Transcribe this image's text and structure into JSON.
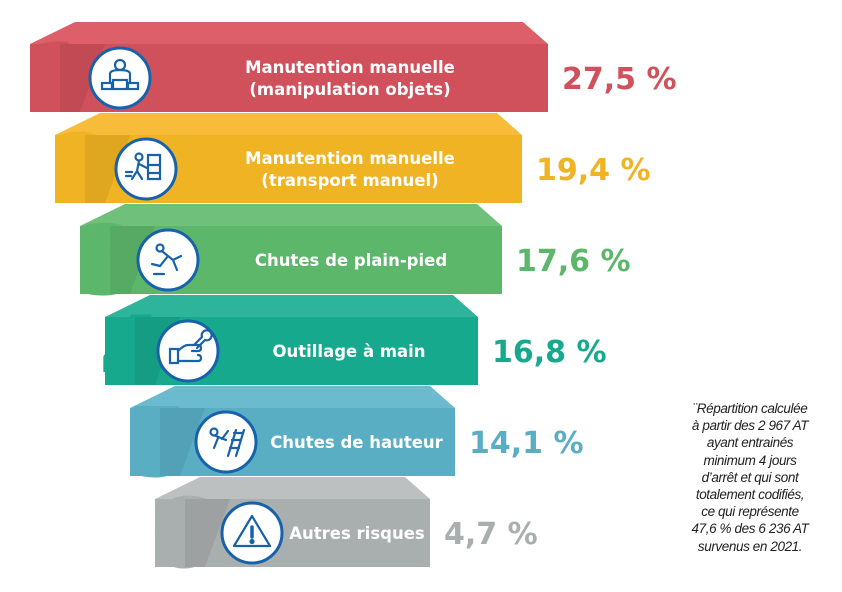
{
  "chart_data": {
    "type": "bar",
    "orientation": "horizontal-ranked",
    "unit": "%",
    "ranks": [
      "1",
      "2",
      "3",
      "4",
      "5",
      "6"
    ],
    "categories": [
      [
        "Manutention manuelle",
        "(manipulation objets)"
      ],
      [
        "Manutention manuelle",
        "(transport manuel)"
      ],
      [
        "Chutes de plain-pied"
      ],
      [
        "Outillage à main"
      ],
      [
        "Chutes de hauteur"
      ],
      [
        "Autres risques"
      ]
    ],
    "values": [
      27.5,
      19.4,
      17.6,
      16.8,
      14.1,
      4.7
    ],
    "value_labels": [
      "27,5 %",
      "19,4 %",
      "17,6 %",
      "16,8 %",
      "14,1 %",
      "4,7 %"
    ],
    "icons": [
      "worker-carrying-boxes-icon",
      "worker-pushing-trolley-icon",
      "person-slipping-icon",
      "hand-holding-wrench-icon",
      "person-falling-ladder-icon",
      "warning-triangle-icon"
    ],
    "colors": [
      "#d0505b",
      "#f0b323",
      "#5db76b",
      "#17a98e",
      "#5aaec4",
      "#a9aeaf"
    ],
    "light_colors": [
      "#dc5f6a",
      "#f7bd3a",
      "#6fc07b",
      "#2db49b",
      "#6bbacd",
      "#bcc0c1"
    ],
    "icon_color": "#1762aa"
  },
  "footnote": [
    "¨Répartition calculée",
    "à partir des 2 967 AT",
    "ayant entrainés",
    "minimum 4 jours",
    "d’arrêt et qui sont",
    "totalement codifiés,",
    "ce qui représente",
    "47,6 % des 6 236 AT",
    "survenus en 2021."
  ]
}
